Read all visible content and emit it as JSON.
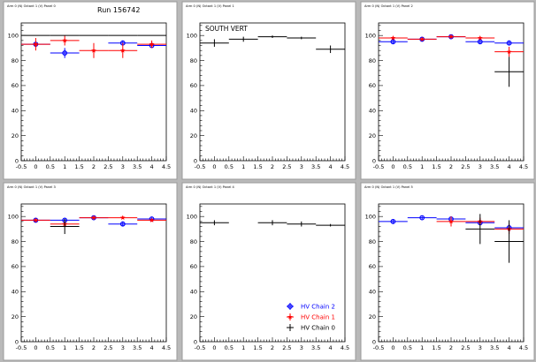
{
  "run_label": "Run 156742",
  "legend": [
    {
      "label": "HV Chain 2",
      "color": "#0000ff",
      "marker": "circle"
    },
    {
      "label": "HV Chain 1",
      "color": "#ff0000",
      "marker": "star"
    },
    {
      "label": "HV Chain 0",
      "color": "#000000",
      "marker": "cross"
    }
  ],
  "chart_data": [
    {
      "type": "scatter",
      "title": "",
      "header_label": "Arm 0 (N) Octant 1 (V) Panel 0",
      "xlim": [
        -0.5,
        4.5
      ],
      "ylim": [
        0,
        110
      ],
      "xticks": [
        "-0.5",
        "0",
        "0.5",
        "1",
        "1.5",
        "2",
        "2.5",
        "3",
        "3.5",
        "4",
        "4.5"
      ],
      "yticks": [
        "0",
        "20",
        "40",
        "60",
        "80",
        "100"
      ],
      "series": [
        {
          "name": "HV Chain 2",
          "color": "#0000ff",
          "marker": "circle",
          "points": [
            {
              "x": 0,
              "y": 93,
              "xerr": 0.5,
              "yerr": 2
            },
            {
              "x": 1,
              "y": 86,
              "xerr": 0.5,
              "yerr": 4
            },
            {
              "x": 3,
              "y": 94,
              "xerr": 0.5,
              "yerr": 2
            },
            {
              "x": 4,
              "y": 92,
              "xerr": 0.5,
              "yerr": 2
            }
          ]
        },
        {
          "name": "HV Chain 1",
          "color": "#ff0000",
          "marker": "star",
          "points": [
            {
              "x": 0,
              "y": 93,
              "xerr": 0.5,
              "yerr": 5
            },
            {
              "x": 1,
              "y": 96,
              "xerr": 0.5,
              "yerr": 4
            },
            {
              "x": 2,
              "y": 88,
              "xerr": 0.5,
              "yerr": 6
            },
            {
              "x": 3,
              "y": 88,
              "xerr": 0.5,
              "yerr": 6
            },
            {
              "x": 4,
              "y": 93,
              "xerr": 0.5,
              "yerr": 3
            }
          ]
        },
        {
          "name": "HV Chain 0",
          "color": "#000000",
          "marker": "cross",
          "points": [
            {
              "x": 0,
              "y": 100,
              "xerr": 0.5,
              "yerr": 0
            },
            {
              "x": 1,
              "y": 100,
              "xerr": 0.5,
              "yerr": 0
            },
            {
              "x": 2,
              "y": 100,
              "xerr": 0.5,
              "yerr": 0
            },
            {
              "x": 3,
              "y": 100,
              "xerr": 0.5,
              "yerr": 0
            },
            {
              "x": 4,
              "y": 100,
              "xerr": 0.5,
              "yerr": 0
            }
          ]
        }
      ]
    },
    {
      "type": "scatter",
      "title": "SOUTH VERT",
      "header_label": "Arm 0 (N) Octant 1 (V) Panel 1",
      "xlim": [
        -0.5,
        4.5
      ],
      "ylim": [
        0,
        110
      ],
      "xticks": [
        "-0.5",
        "0",
        "0.5",
        "1",
        "1.5",
        "2",
        "2.5",
        "3",
        "3.5",
        "4",
        "4.5"
      ],
      "yticks": [
        "0",
        "20",
        "40",
        "60",
        "80",
        "100"
      ],
      "series": [
        {
          "name": "HV Chain 0",
          "color": "#000000",
          "marker": "cross",
          "points": [
            {
              "x": 0,
              "y": 94,
              "xerr": 0.5,
              "yerr": 3
            },
            {
              "x": 1,
              "y": 97,
              "xerr": 0.5,
              "yerr": 2
            },
            {
              "x": 2,
              "y": 99,
              "xerr": 0.5,
              "yerr": 1
            },
            {
              "x": 3,
              "y": 98,
              "xerr": 0.5,
              "yerr": 1
            },
            {
              "x": 4,
              "y": 89,
              "xerr": 0.5,
              "yerr": 3
            }
          ]
        }
      ]
    },
    {
      "type": "scatter",
      "title": "",
      "header_label": "Arm 0 (N) Octant 1 (V) Panel 2",
      "xlim": [
        -0.5,
        4.5
      ],
      "ylim": [
        0,
        110
      ],
      "xticks": [
        "-0.5",
        "0",
        "0.5",
        "1",
        "1.5",
        "2",
        "2.5",
        "3",
        "3.5",
        "4",
        "4.5"
      ],
      "yticks": [
        "0",
        "20",
        "40",
        "60",
        "80",
        "100"
      ],
      "series": [
        {
          "name": "HV Chain 2",
          "color": "#0000ff",
          "marker": "circle",
          "points": [
            {
              "x": 0,
              "y": 95,
              "xerr": 0.5,
              "yerr": 2
            },
            {
              "x": 1,
              "y": 97,
              "xerr": 0.5,
              "yerr": 1
            },
            {
              "x": 2,
              "y": 99,
              "xerr": 0.5,
              "yerr": 1
            },
            {
              "x": 3,
              "y": 95,
              "xerr": 0.5,
              "yerr": 2
            },
            {
              "x": 4,
              "y": 94,
              "xerr": 0.5,
              "yerr": 2
            }
          ]
        },
        {
          "name": "HV Chain 1",
          "color": "#ff0000",
          "marker": "star",
          "points": [
            {
              "x": 0,
              "y": 98,
              "xerr": 0.5,
              "yerr": 1
            },
            {
              "x": 1,
              "y": 97,
              "xerr": 0.5,
              "yerr": 1
            },
            {
              "x": 2,
              "y": 99,
              "xerr": 0.5,
              "yerr": 1
            },
            {
              "x": 3,
              "y": 98,
              "xerr": 0.5,
              "yerr": 1
            },
            {
              "x": 4,
              "y": 87,
              "xerr": 0.5,
              "yerr": 4
            }
          ]
        },
        {
          "name": "HV Chain 0",
          "color": "#000000",
          "marker": "cross",
          "points": [
            {
              "x": 4,
              "y": 71,
              "xerr": 0.5,
              "yerr": 12
            }
          ]
        }
      ]
    },
    {
      "type": "scatter",
      "title": "",
      "header_label": "Arm 0 (N) Octant 1 (V) Panel 3",
      "xlim": [
        -0.5,
        4.5
      ],
      "ylim": [
        0,
        110
      ],
      "xticks": [
        "-0.5",
        "0",
        "0.5",
        "1",
        "1.5",
        "2",
        "2.5",
        "3",
        "3.5",
        "4",
        "4.5"
      ],
      "yticks": [
        "0",
        "20",
        "40",
        "60",
        "80",
        "100"
      ],
      "series": [
        {
          "name": "HV Chain 2",
          "color": "#0000ff",
          "marker": "circle",
          "points": [
            {
              "x": 0,
              "y": 97,
              "xerr": 0.5,
              "yerr": 1
            },
            {
              "x": 1,
              "y": 97,
              "xerr": 0.5,
              "yerr": 1
            },
            {
              "x": 2,
              "y": 99,
              "xerr": 0.5,
              "yerr": 1
            },
            {
              "x": 3,
              "y": 94,
              "xerr": 0.5,
              "yerr": 2
            },
            {
              "x": 4,
              "y": 98,
              "xerr": 0.5,
              "yerr": 1
            }
          ]
        },
        {
          "name": "HV Chain 1",
          "color": "#ff0000",
          "marker": "star",
          "points": [
            {
              "x": 0,
              "y": 97,
              "xerr": 0.5,
              "yerr": 1
            },
            {
              "x": 1,
              "y": 94,
              "xerr": 0.5,
              "yerr": 2
            },
            {
              "x": 2,
              "y": 99,
              "xerr": 0.5,
              "yerr": 1
            },
            {
              "x": 3,
              "y": 99,
              "xerr": 0.5,
              "yerr": 1
            },
            {
              "x": 4,
              "y": 97,
              "xerr": 0.5,
              "yerr": 1
            }
          ]
        },
        {
          "name": "HV Chain 0",
          "color": "#000000",
          "marker": "cross",
          "points": [
            {
              "x": 1,
              "y": 92,
              "xerr": 0.5,
              "yerr": 6
            }
          ]
        }
      ]
    },
    {
      "type": "scatter",
      "title": "",
      "header_label": "Arm 0 (N) Octant 1 (V) Panel 4",
      "xlim": [
        -0.5,
        4.5
      ],
      "ylim": [
        0,
        110
      ],
      "xticks": [
        "-0.5",
        "0",
        "0.5",
        "1",
        "1.5",
        "2",
        "2.5",
        "3",
        "3.5",
        "4",
        "4.5"
      ],
      "yticks": [
        "0",
        "20",
        "40",
        "60",
        "80",
        "100"
      ],
      "legend_placement": "bottom-right",
      "series": [
        {
          "name": "HV Chain 0",
          "color": "#000000",
          "marker": "cross",
          "points": [
            {
              "x": 0,
              "y": 95,
              "xerr": 0.5,
              "yerr": 2
            },
            {
              "x": 2,
              "y": 95,
              "xerr": 0.5,
              "yerr": 2
            },
            {
              "x": 3,
              "y": 94,
              "xerr": 0.5,
              "yerr": 2
            },
            {
              "x": 4,
              "y": 93,
              "xerr": 0.5,
              "yerr": 1
            }
          ]
        }
      ]
    },
    {
      "type": "scatter",
      "title": "",
      "header_label": "Arm 0 (N) Octant 1 (V) Panel 5",
      "xlim": [
        -0.5,
        4.5
      ],
      "ylim": [
        0,
        110
      ],
      "xticks": [
        "-0.5",
        "0",
        "0.5",
        "1",
        "1.5",
        "2",
        "2.5",
        "3",
        "3.5",
        "4",
        "4.5"
      ],
      "yticks": [
        "0",
        "20",
        "40",
        "60",
        "80",
        "100"
      ],
      "series": [
        {
          "name": "HV Chain 2",
          "color": "#0000ff",
          "marker": "circle",
          "points": [
            {
              "x": 0,
              "y": 96,
              "xerr": 0.5,
              "yerr": 2
            },
            {
              "x": 1,
              "y": 99,
              "xerr": 0.5,
              "yerr": 1
            },
            {
              "x": 2,
              "y": 98,
              "xerr": 0.5,
              "yerr": 1
            },
            {
              "x": 3,
              "y": 95,
              "xerr": 0.5,
              "yerr": 2
            },
            {
              "x": 4,
              "y": 91,
              "xerr": 0.5,
              "yerr": 3
            }
          ]
        },
        {
          "name": "HV Chain 1",
          "color": "#ff0000",
          "marker": "star",
          "points": [
            {
              "x": 2,
              "y": 96,
              "xerr": 0.5,
              "yerr": 4
            },
            {
              "x": 3,
              "y": 96,
              "xerr": 0.5,
              "yerr": 3
            },
            {
              "x": 4,
              "y": 90,
              "xerr": 0.5,
              "yerr": 4
            }
          ]
        },
        {
          "name": "HV Chain 0",
          "color": "#000000",
          "marker": "cross",
          "points": [
            {
              "x": 3,
              "y": 90,
              "xerr": 0.5,
              "yerr": 12
            },
            {
              "x": 4,
              "y": 80,
              "xerr": 0.5,
              "yerr": 17
            }
          ]
        }
      ]
    }
  ]
}
